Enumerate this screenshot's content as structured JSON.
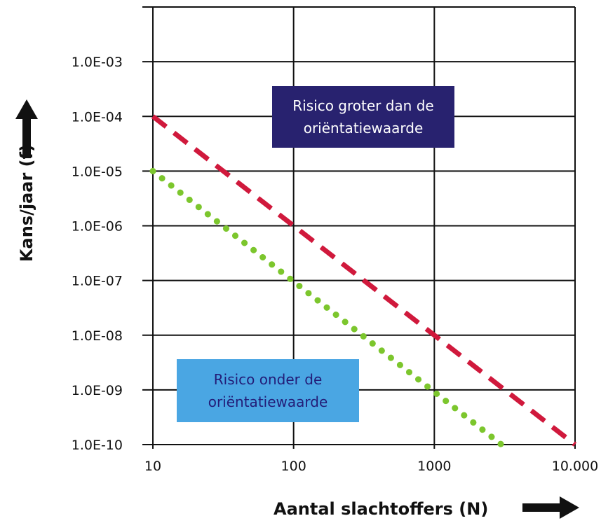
{
  "chart_data": {
    "type": "line",
    "xlabel": "Aantal slachtoffers (N)",
    "ylabel": "Kans/jaar (f)",
    "x_scale": "log",
    "y_scale": "log",
    "xlim": [
      10,
      10000
    ],
    "ylim": [
      1e-10,
      0.01
    ],
    "grid": true,
    "x_ticks": [
      {
        "value": 10,
        "label": "10"
      },
      {
        "value": 100,
        "label": "100"
      },
      {
        "value": 1000,
        "label": "1000"
      },
      {
        "value": 10000,
        "label": "10.000"
      }
    ],
    "y_ticks": [
      {
        "value": 0.001,
        "label": "1.0E-03"
      },
      {
        "value": 0.0001,
        "label": "1.0E-04"
      },
      {
        "value": 1e-05,
        "label": "1.0E-05"
      },
      {
        "value": 1e-06,
        "label": "1.0E-06"
      },
      {
        "value": 1e-07,
        "label": "1.0E-07"
      },
      {
        "value": 1e-08,
        "label": "1.0E-08"
      },
      {
        "value": 1e-09,
        "label": "1.0E-09"
      },
      {
        "value": 1e-10,
        "label": "1.0E-10"
      }
    ],
    "series": [
      {
        "color": "#d0193c",
        "style": "dashed",
        "x": [
          10,
          10000
        ],
        "y": [
          0.0001,
          1e-10
        ]
      },
      {
        "color": "#7cc62d",
        "style": "dotted",
        "x": [
          10,
          3000
        ],
        "y": [
          1e-05,
          1e-10
        ]
      }
    ],
    "annotations": [
      {
        "id": "above",
        "text": "Risico groter dan de\noriëntatiewaarde",
        "background": "#28226f",
        "text_color": "#ffffff"
      },
      {
        "id": "below",
        "text": "Risico onder de\noriëntatiewaarde",
        "background": "#4aa6e3",
        "text_color": "#231c77"
      }
    ],
    "arrow_icons": [
      "arrow-up-icon",
      "arrow-right-icon"
    ]
  }
}
